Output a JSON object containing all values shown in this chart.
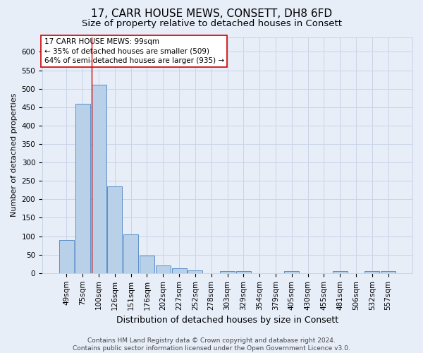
{
  "title": "17, CARR HOUSE MEWS, CONSETT, DH8 6FD",
  "subtitle": "Size of property relative to detached houses in Consett",
  "xlabel": "Distribution of detached houses by size in Consett",
  "ylabel": "Number of detached properties",
  "categories": [
    "49sqm",
    "75sqm",
    "100sqm",
    "126sqm",
    "151sqm",
    "176sqm",
    "202sqm",
    "227sqm",
    "252sqm",
    "278sqm",
    "303sqm",
    "329sqm",
    "354sqm",
    "379sqm",
    "405sqm",
    "430sqm",
    "455sqm",
    "481sqm",
    "506sqm",
    "532sqm",
    "557sqm"
  ],
  "values": [
    90,
    460,
    510,
    235,
    105,
    47,
    20,
    13,
    8,
    0,
    5,
    5,
    0,
    0,
    5,
    0,
    0,
    5,
    0,
    5,
    5
  ],
  "bar_color": "#b8d0e8",
  "bar_edge_color": "#5b8fc9",
  "grid_color": "#c8d4e8",
  "background_color": "#e8eef8",
  "annotation_box_text": "17 CARR HOUSE MEWS: 99sqm\n← 35% of detached houses are smaller (509)\n64% of semi-detached houses are larger (935) →",
  "annotation_box_color": "#ffffff",
  "annotation_box_edge_color": "#cc0000",
  "red_line_x": "100sqm",
  "ylim": [
    0,
    640
  ],
  "yticks": [
    0,
    50,
    100,
    150,
    200,
    250,
    300,
    350,
    400,
    450,
    500,
    550,
    600
  ],
  "footer_line1": "Contains HM Land Registry data © Crown copyright and database right 2024.",
  "footer_line2": "Contains public sector information licensed under the Open Government Licence v3.0.",
  "title_fontsize": 11,
  "subtitle_fontsize": 9.5,
  "xlabel_fontsize": 9,
  "ylabel_fontsize": 8,
  "tick_fontsize": 7.5,
  "annotation_fontsize": 7.5,
  "footer_fontsize": 6.5
}
